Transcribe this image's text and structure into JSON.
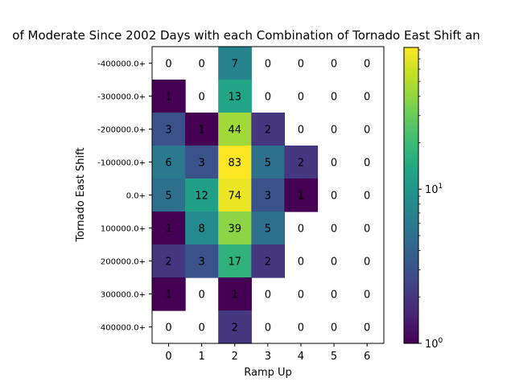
{
  "chart_data": {
    "type": "heatmap",
    "title": "of Moderate Since 2002 Days with each Combination of Tornado East Shift an",
    "xlabel": "Ramp Up",
    "ylabel": "Tornado East Shift",
    "x_ticks": [
      "0",
      "1",
      "2",
      "3",
      "4",
      "5",
      "6"
    ],
    "y_ticks": [
      "-400000.0+",
      "-300000.0+",
      "-200000.0+",
      "-100000.0+",
      "0.0+",
      "100000.0+",
      "200000.0+",
      "300000.0+",
      "400000.0+"
    ],
    "values": [
      [
        0,
        0,
        7,
        0,
        0,
        0,
        0
      ],
      [
        1,
        0,
        13,
        0,
        0,
        0,
        0
      ],
      [
        3,
        1,
        44,
        2,
        0,
        0,
        0
      ],
      [
        6,
        3,
        83,
        5,
        2,
        0,
        0
      ],
      [
        5,
        12,
        74,
        3,
        1,
        0,
        0
      ],
      [
        1,
        8,
        39,
        5,
        0,
        0,
        0
      ],
      [
        2,
        3,
        17,
        2,
        0,
        0,
        0
      ],
      [
        1,
        0,
        1,
        0,
        0,
        0,
        0
      ],
      [
        0,
        0,
        2,
        0,
        0,
        0,
        0
      ]
    ],
    "colorbar": {
      "scale": "log",
      "range": [
        1,
        83
      ],
      "tick_labels": [
        "10^0",
        "10^1"
      ],
      "colormap": "viridis"
    },
    "zero_cells": "blank"
  }
}
